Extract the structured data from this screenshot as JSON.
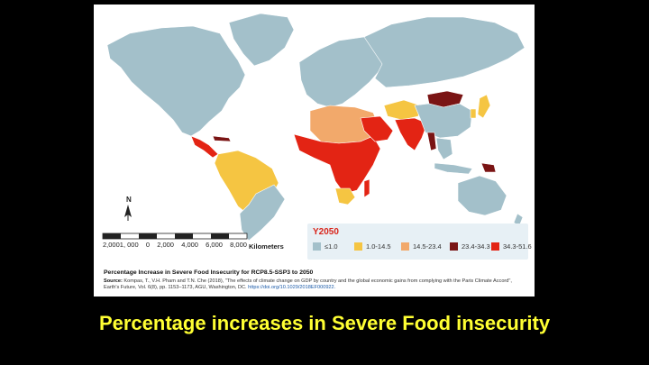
{
  "legend": {
    "title": "Y2050",
    "items": [
      {
        "label": "≤1.0",
        "color": "#a3c0ca"
      },
      {
        "label": "1.0-14.5",
        "color": "#f5c542"
      },
      {
        "label": "14.5-23.4",
        "color": "#f2a96b"
      },
      {
        "label": "23.4-34.3",
        "color": "#7a1414"
      },
      {
        "label": "34.3-51.6",
        "color": "#e32414"
      }
    ]
  },
  "scale_bar": {
    "ticks": [
      "2,0001, 000",
      "0",
      "2,000",
      "4,000",
      "6,000",
      "8,000"
    ],
    "unit": "Kilometers"
  },
  "north_arrow": "N",
  "figure": {
    "title": "Percentage Increase in Severe Food Insecurity for RCP8.5-SSP3 to 2050",
    "source_label": "Source:",
    "source_text": "Kompas, T., V.H. Pham and T.N. Che (2018), \"The effects of climate change on GDP by country and the global economic gains from complying with the Paris Climate Accord\", Earth's Future, Vol. 6(8), pp. 1153–1173, AGU, Washington, DC.",
    "source_doi": "https://doi.org/10.1029/2018EF000922."
  },
  "caption": "Percentage increases in Severe Food insecurity",
  "colors": {
    "ocean": "#ffffff",
    "land_default": "#a3c0ca",
    "border": "#ffffff"
  }
}
